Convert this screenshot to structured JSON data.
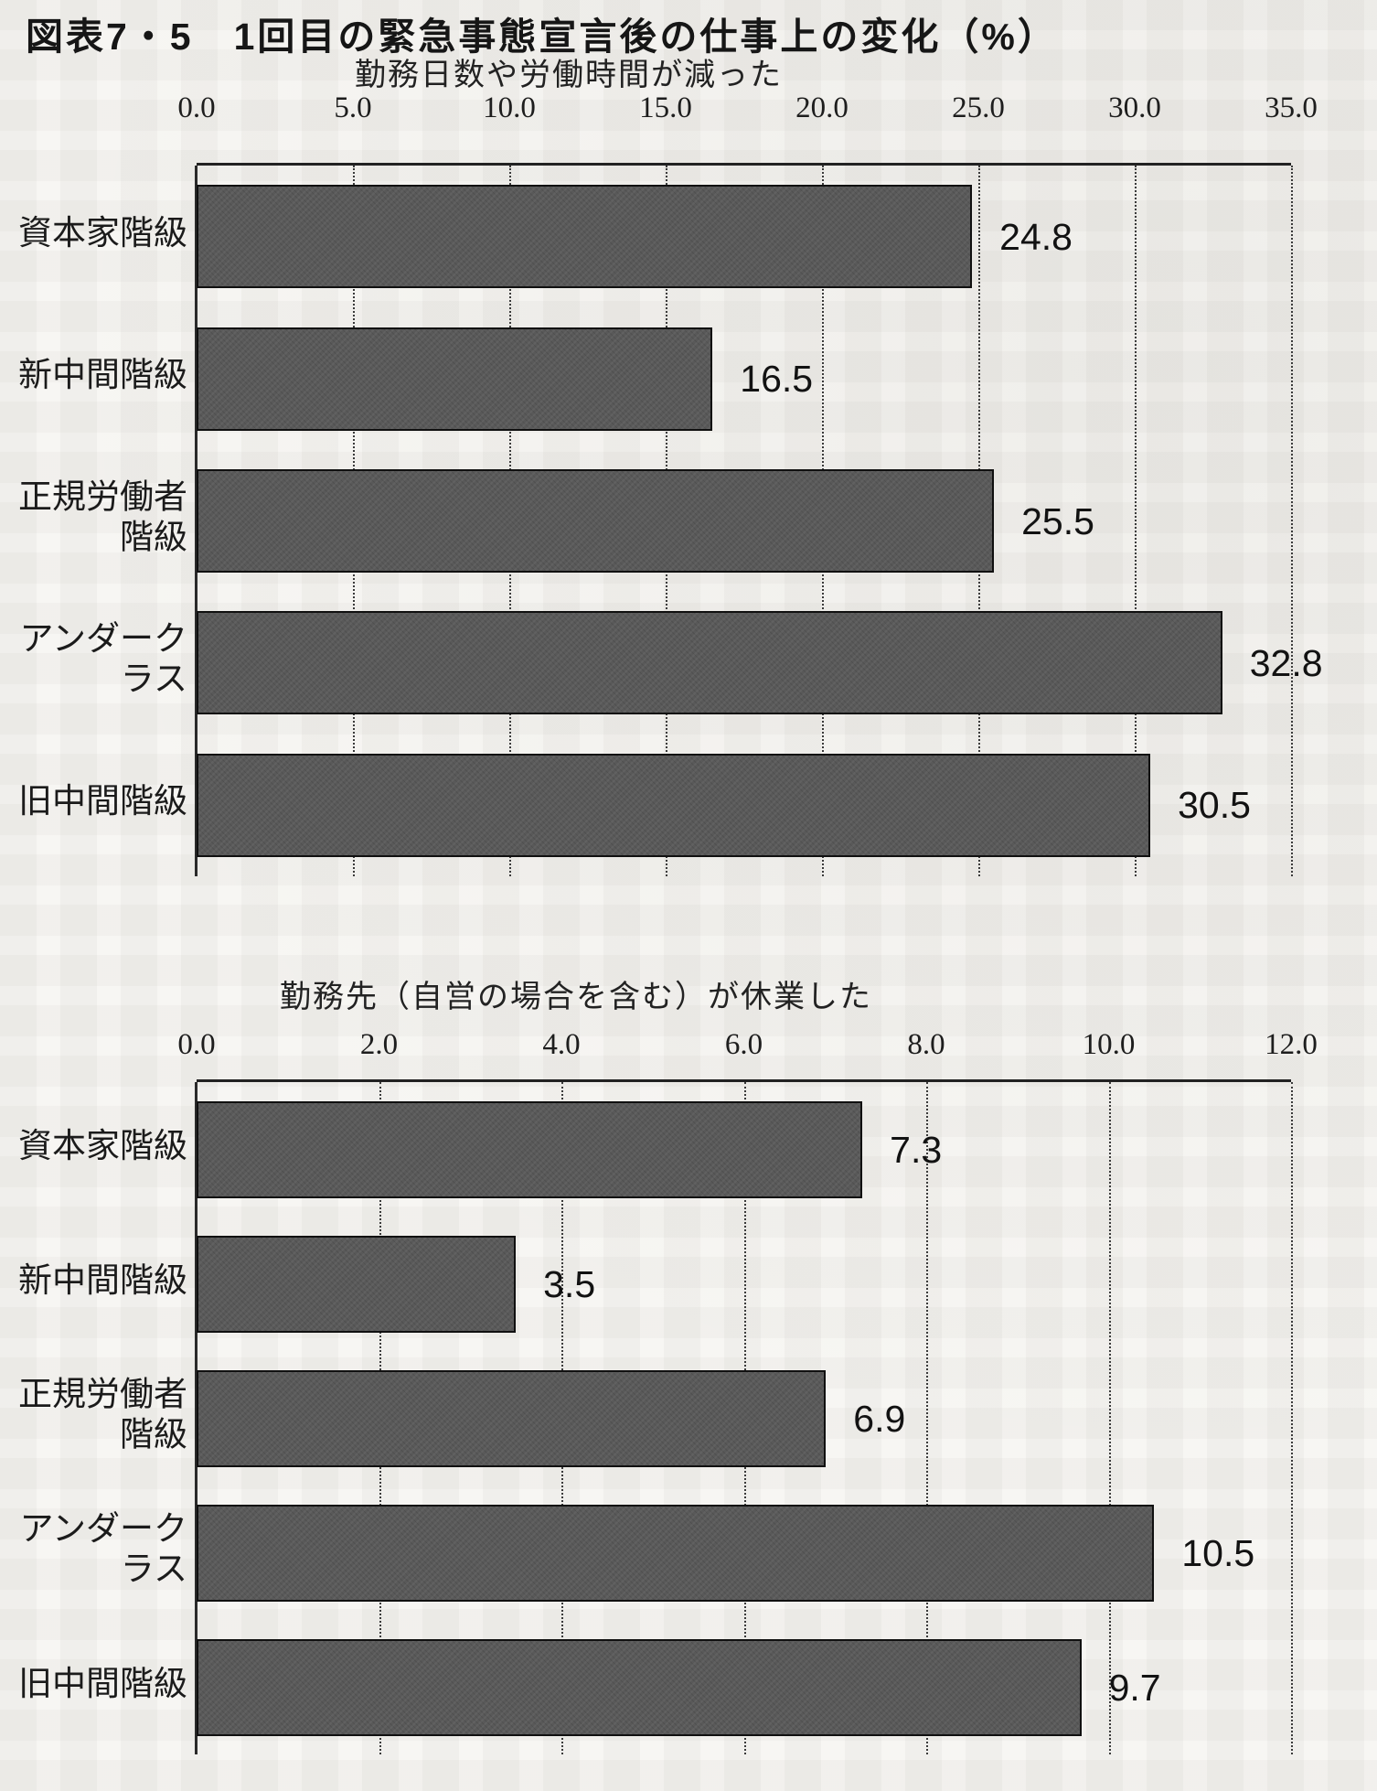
{
  "figure": {
    "title": "図表7・5　1回目の緊急事態宣言後の仕事上の変化（%）"
  },
  "colors": {
    "bar": "#595959",
    "axis": "#222222",
    "paper": "#f7f6f3"
  },
  "chart_data": [
    {
      "type": "bar",
      "orientation": "horizontal",
      "subtitle": "勤務日数や労働時間が減った",
      "categories": [
        "資本家階級",
        "新中間階級",
        "正規労働者\n階級",
        "アンダークラス",
        "旧中間階級"
      ],
      "values": [
        24.8,
        16.5,
        25.5,
        32.8,
        30.5
      ],
      "value_labels": [
        "24.8",
        "16.5",
        "25.5",
        "32.8",
        "30.5"
      ],
      "axis_ticks": [
        "0.0",
        "5.0",
        "10.0",
        "15.0",
        "20.0",
        "25.0",
        "30.0",
        "35.0"
      ],
      "xlim": [
        0,
        35
      ],
      "grid": "dotted-vertical",
      "legend": "none"
    },
    {
      "type": "bar",
      "orientation": "horizontal",
      "subtitle": "勤務先（自営の場合を含む）が休業した",
      "categories": [
        "資本家階級",
        "新中間階級",
        "正規労働者\n階級",
        "アンダークラス",
        "旧中間階級"
      ],
      "values": [
        7.3,
        3.5,
        6.9,
        10.5,
        9.7
      ],
      "value_labels": [
        "7.3",
        "3.5",
        "6.9",
        "10.5",
        "9.7"
      ],
      "axis_ticks": [
        "0.0",
        "2.0",
        "4.0",
        "6.0",
        "8.0",
        "10.0",
        "12.0"
      ],
      "xlim": [
        0,
        12
      ],
      "grid": "dotted-vertical",
      "legend": "none"
    }
  ]
}
